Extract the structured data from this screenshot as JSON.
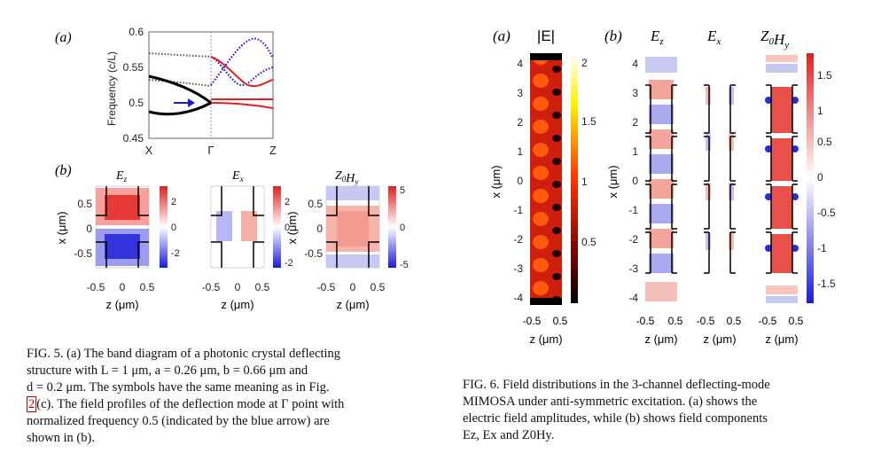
{
  "fig5": {
    "panel_a_label": "(a)",
    "panel_b_label": "(b)",
    "band": {
      "ylabel": "Frequency (c/L)",
      "yticks": [
        "0.6",
        "0.55",
        "0.5",
        "0.45"
      ],
      "xticks": [
        "X",
        "Γ",
        "Z"
      ],
      "ylim": [
        0.45,
        0.6
      ],
      "arrow_color": "#1a1adb"
    },
    "maps": [
      {
        "title": "E",
        "sub": "z",
        "cb_ticks": [
          "2",
          "0",
          "-2"
        ]
      },
      {
        "title": "E",
        "sub": "x",
        "cb_ticks": [
          "2",
          "0",
          "-2"
        ]
      },
      {
        "title": "Z",
        "sub": "0",
        "title2": "H",
        "sub2": "y",
        "cb_ticks": [
          "5",
          "0",
          "-5"
        ]
      }
    ],
    "map_yticks": [
      "0.5",
      "0",
      "-0.5"
    ],
    "map_xticks": [
      "-0.5",
      "0",
      "0.5"
    ],
    "map_ylabel": "x (μm)",
    "map_xlabel": "z (μm)",
    "caption": [
      "FIG. 5.   (a) The band diagram of a photonic crystal deflecting",
      "structure with L = 1 μm, a = 0.26 μm, b = 0.66 μm and",
      "d = 0.2 μm.  The symbols have the same meaning as in Fig.",
      "(c).  The field profiles of the deflection mode at Γ point with",
      "normalized frequency 0.5 (indicated by the blue arrow) are",
      "shown in (b)."
    ],
    "caption_ref": "2"
  },
  "fig6": {
    "panel_a_label": "(a)",
    "panel_b_label": "(b)",
    "abs_title": "|E|",
    "abs_cb_ticks": [
      "2",
      "1.5",
      "1",
      "0.5"
    ],
    "comp_titles": [
      {
        "t": "E",
        "s": "z"
      },
      {
        "t": "E",
        "s": "x"
      },
      {
        "t": "Z",
        "s": "0",
        "t2": "H",
        "s2": "y"
      }
    ],
    "yticks": [
      "4",
      "3",
      "2",
      "1",
      "0",
      "-1",
      "-2",
      "-3",
      "-4"
    ],
    "cb_ticks": [
      "1.5",
      "1",
      "0.5",
      "0",
      "-0.5",
      "-1",
      "-1.5"
    ],
    "xtick_pair": [
      "-0.5",
      "0.5"
    ],
    "ylabel": "x (μm)",
    "xlabel": "z (μm)",
    "caption": [
      "FIG. 6.  Field distributions in the 3-channel deflecting-mode",
      "MIMOSA under anti-symmetric excitation.   (a) shows the",
      "electric field amplitudes, while (b) shows field components",
      "Ez, Ex and Z0Hy."
    ]
  },
  "colors": {
    "red": "#e0201c",
    "blue": "#1a1adb",
    "black": "#000000"
  }
}
